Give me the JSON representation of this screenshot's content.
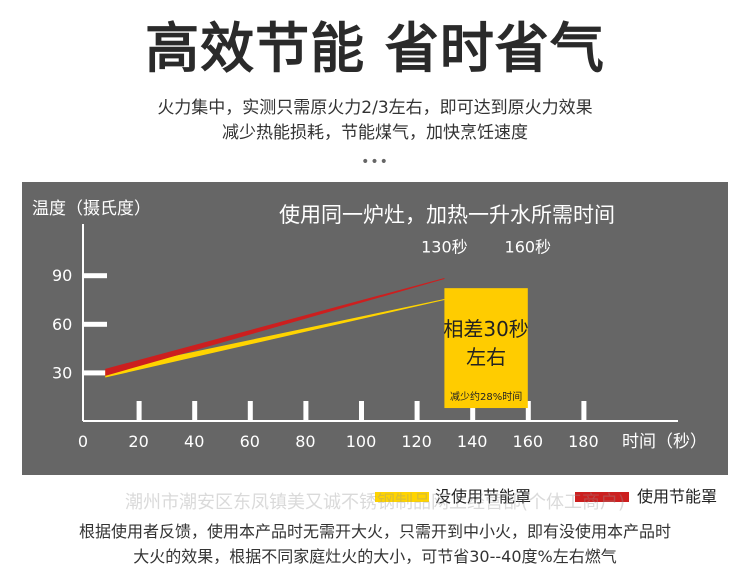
{
  "headline": "高效节能  省时省气",
  "subtitle_line1": "火力集中，实测只需原火力2/3左右，即可达到原火力效果",
  "subtitle_line2": "减少热能损耗，节能煤气，加快烹饪速度",
  "dots": "•••",
  "colors": {
    "panel": "#666666",
    "no_cover": "#ffd400",
    "with_cover": "#cc1f1f",
    "highlight": "#ffcc00",
    "axis": "#ffffff"
  },
  "chart_data": {
    "type": "line",
    "title": "使用同一炉灶，加热一升水所需时间",
    "ylabel": "温度（摄氏度）",
    "xlabel": "时间（秒）",
    "x_ticks": [
      0,
      20,
      40,
      60,
      80,
      100,
      120,
      140,
      160,
      180
    ],
    "y_ticks": [
      30,
      60,
      90
    ],
    "xlim": [
      0,
      210
    ],
    "ylim": [
      0,
      110
    ],
    "series": [
      {
        "name": "没使用节能罩",
        "color": "#ffd400",
        "points": [
          [
            8,
            29
          ],
          [
            130,
            75
          ]
        ]
      },
      {
        "name": "使用节能罩",
        "color": "#cc1f1f",
        "points": [
          [
            8,
            30
          ],
          [
            130,
            88
          ]
        ]
      }
    ],
    "annotations": [
      {
        "text": "130秒",
        "x": 130,
        "y": 104
      },
      {
        "text": "160秒",
        "x": 160,
        "y": 104
      }
    ],
    "highlight": {
      "x_range": [
        130,
        160
      ],
      "y_range": [
        8,
        82
      ],
      "text_line1": "相差30秒",
      "text_line2": "左右",
      "note": "减少约28%时间"
    }
  },
  "legend": {
    "no_cover_label": "没使用节能罩",
    "with_cover_label": "使用节能罩"
  },
  "footer_line1": "根据使用者反馈，使用本产品时无需开大火，只需开到中小火，即有没使用本产品时",
  "footer_line2": "大火的效果，根据不同家庭灶火的大小，可节省30--40度%左右燃气",
  "watermark": "潮州市潮安区东凤镇美又诚不锈钢制品网上经营部(个体工商户)"
}
